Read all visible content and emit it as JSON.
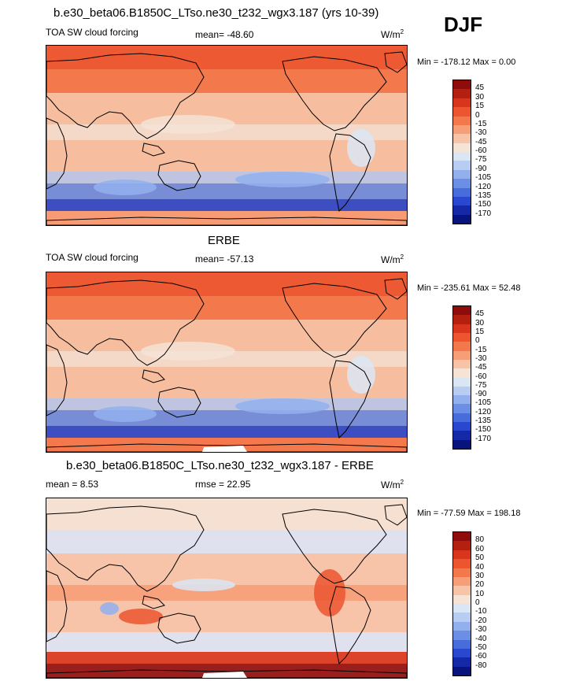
{
  "header": {
    "title": "b.e30_beta06.B1850C_LTso.ne30_t232_wgx3.187 (yrs 10-39)",
    "season": "DJF"
  },
  "panels": [
    {
      "id": "model",
      "title": "",
      "left_label": "TOA SW cloud forcing",
      "center_label": "mean= -48.60",
      "unit": "W/m",
      "unit_sup": "2",
      "minmax": "Min = -178.12 Max =   0.00",
      "levels": [
        "45",
        "30",
        "15",
        "0",
        "-15",
        "-30",
        "-45",
        "-60",
        "-75",
        "-90",
        "-105",
        "-120",
        "-135",
        "-150",
        "-170"
      ],
      "colors": [
        "#8f0c0c",
        "#b51f10",
        "#d8351c",
        "#ec5530",
        "#f3784b",
        "#f69e78",
        "#f7c4a8",
        "#f5e3d6",
        "#dbe6f5",
        "#b9cdf2",
        "#92b0ee",
        "#6b8fe6",
        "#476cdb",
        "#2948cf",
        "#1528a8",
        "#08137e"
      ]
    },
    {
      "id": "obs",
      "title": "ERBE",
      "left_label": "TOA SW cloud forcing",
      "center_label": "mean= -57.13",
      "unit": "W/m",
      "unit_sup": "2",
      "minmax": "Min = -235.61 Max =  52.48",
      "levels": [
        "45",
        "30",
        "15",
        "0",
        "-15",
        "-30",
        "-45",
        "-60",
        "-75",
        "-90",
        "-105",
        "-120",
        "-135",
        "-150",
        "-170"
      ],
      "colors": [
        "#8f0c0c",
        "#b51f10",
        "#d8351c",
        "#ec5530",
        "#f3784b",
        "#f69e78",
        "#f7c4a8",
        "#f5e3d6",
        "#dbe6f5",
        "#b9cdf2",
        "#92b0ee",
        "#6b8fe6",
        "#476cdb",
        "#2948cf",
        "#1528a8",
        "#08137e"
      ]
    },
    {
      "id": "diff",
      "title": "b.e30_beta06.B1850C_LTso.ne30_t232_wgx3.187 - ERBE",
      "left_label": "mean =   8.53",
      "center_label": "rmse =  22.95",
      "unit": "W/m",
      "unit_sup": "2",
      "minmax": "Min = -77.59 Max = 198.18",
      "levels": [
        "80",
        "60",
        "50",
        "40",
        "30",
        "20",
        "10",
        "0",
        "-10",
        "-20",
        "-30",
        "-40",
        "-50",
        "-60",
        "-80"
      ],
      "colors": [
        "#8f0c0c",
        "#b51f10",
        "#d8351c",
        "#ec5530",
        "#f3784b",
        "#f69e78",
        "#f7c4a8",
        "#f5e3d6",
        "#dbe6f5",
        "#b9cdf2",
        "#92b0ee",
        "#6b8fe6",
        "#476cdb",
        "#2948cf",
        "#1528a8",
        "#08137e"
      ]
    }
  ],
  "chart_data": [
    {
      "type": "heatmap",
      "title": "b.e30_beta06.B1850C_LTso.ne30_t232_wgx3.187 (yrs 10-39)",
      "subtitle": "TOA SW cloud forcing",
      "units": "W/m2",
      "mean": -48.6,
      "min": -178.12,
      "max": 0.0,
      "colorbar_levels": [
        45,
        30,
        15,
        0,
        -15,
        -30,
        -45,
        -60,
        -75,
        -90,
        -105,
        -120,
        -135,
        -150,
        -170
      ]
    },
    {
      "type": "heatmap",
      "title": "ERBE",
      "subtitle": "TOA SW cloud forcing",
      "units": "W/m2",
      "mean": -57.13,
      "min": -235.61,
      "max": 52.48,
      "colorbar_levels": [
        45,
        30,
        15,
        0,
        -15,
        -30,
        -45,
        -60,
        -75,
        -90,
        -105,
        -120,
        -135,
        -150,
        -170
      ]
    },
    {
      "type": "heatmap",
      "title": "b.e30_beta06.B1850C_LTso.ne30_t232_wgx3.187 - ERBE",
      "units": "W/m2",
      "mean": 8.53,
      "rmse": 22.95,
      "min": -77.59,
      "max": 198.18,
      "colorbar_levels": [
        80,
        60,
        50,
        40,
        30,
        20,
        10,
        0,
        -10,
        -20,
        -30,
        -40,
        -50,
        -60,
        -80
      ]
    }
  ]
}
